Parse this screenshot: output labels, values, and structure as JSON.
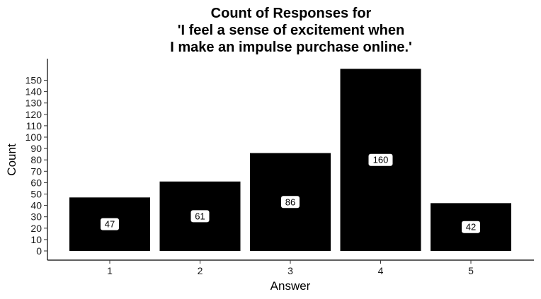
{
  "chart_data": {
    "type": "bar",
    "title_lines": [
      "Count of Responses for",
      "'I feel a sense of excitement when",
      "I make an impulse purchase online.'"
    ],
    "xlabel": "Answer",
    "ylabel": "Count",
    "categories": [
      "1",
      "2",
      "3",
      "4",
      "5"
    ],
    "values": [
      47,
      61,
      86,
      160,
      42
    ],
    "data_labels": [
      "47",
      "61",
      "86",
      "160",
      "42"
    ],
    "ylim": [
      0,
      160
    ],
    "y_ticks": [
      0,
      10,
      20,
      30,
      40,
      50,
      60,
      70,
      80,
      90,
      100,
      110,
      120,
      130,
      140,
      150
    ],
    "y_tick_labels": [
      "0",
      "10",
      "20",
      "30",
      "40",
      "50",
      "60",
      "70",
      "80",
      "90",
      "100",
      "110",
      "120",
      "130",
      "140",
      "150"
    ],
    "bar_color": "#000000",
    "label_fill": "#ffffff",
    "grid": false,
    "legend": "none"
  }
}
